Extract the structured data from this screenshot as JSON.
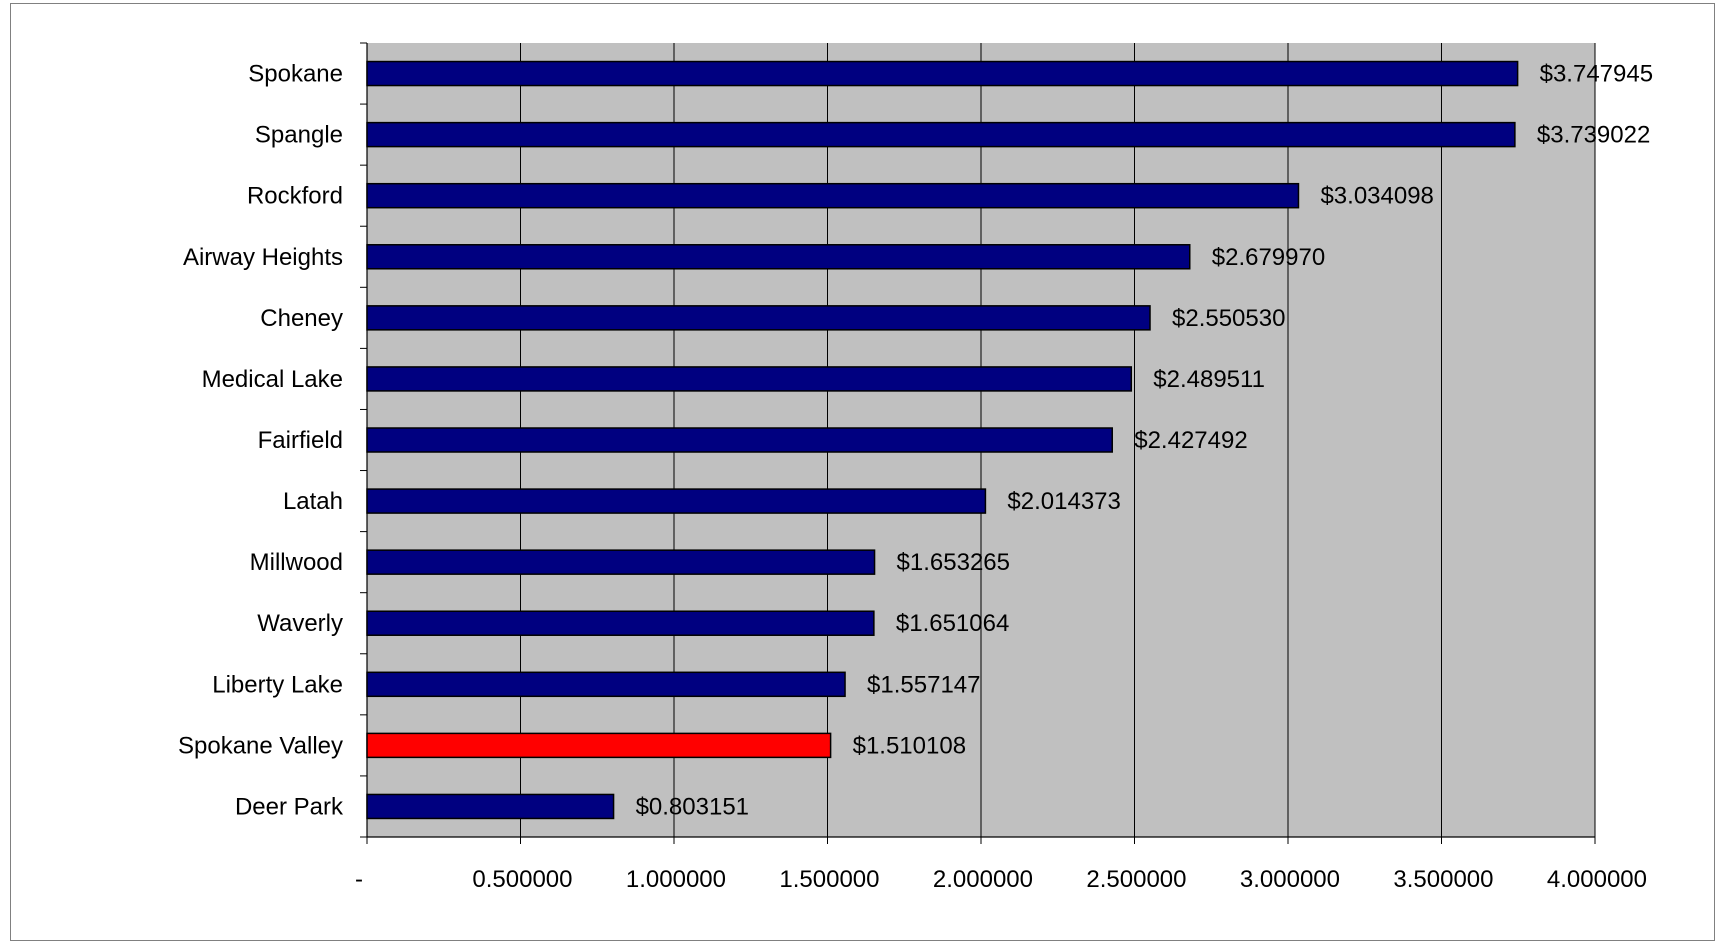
{
  "chart_data": {
    "type": "bar",
    "orientation": "horizontal",
    "categories": [
      "Spokane",
      "Spangle",
      "Rockford",
      "Airway Heights",
      "Cheney",
      "Medical Lake",
      "Fairfield",
      "Latah",
      "Millwood",
      "Waverly",
      "Liberty Lake",
      "Spokane Valley",
      "Deer Park"
    ],
    "values": [
      3.747945,
      3.739022,
      3.034098,
      2.67997,
      2.55053,
      2.489511,
      2.427492,
      2.014373,
      1.653265,
      1.651064,
      1.557147,
      1.510108,
      0.803151
    ],
    "value_labels": [
      "$3.747945",
      "$3.739022",
      "$3.034098",
      "$2.679970",
      "$2.550530",
      "$2.489511",
      "$2.427492",
      "$2.014373",
      "$1.653265",
      "$1.651064",
      "$1.557147",
      "$1.510108",
      "$0.803151"
    ],
    "highlight": "Spokane Valley",
    "xlim": [
      0,
      4
    ],
    "x_ticks": [
      0,
      0.5,
      1,
      1.5,
      2,
      2.5,
      3,
      3.5,
      4
    ],
    "x_tick_labels": [
      "-",
      "0.500000",
      "1.000000",
      "1.500000",
      "2.000000",
      "2.500000",
      "3.000000",
      "3.500000",
      "4.000000"
    ],
    "title": "",
    "xlabel": "",
    "ylabel": "",
    "grid": "vertical",
    "legend": "none",
    "colors": {
      "bar": "#000080",
      "highlight": "#ff0000",
      "plot_background": "#c0c0c0",
      "gridline": "#000000"
    }
  }
}
